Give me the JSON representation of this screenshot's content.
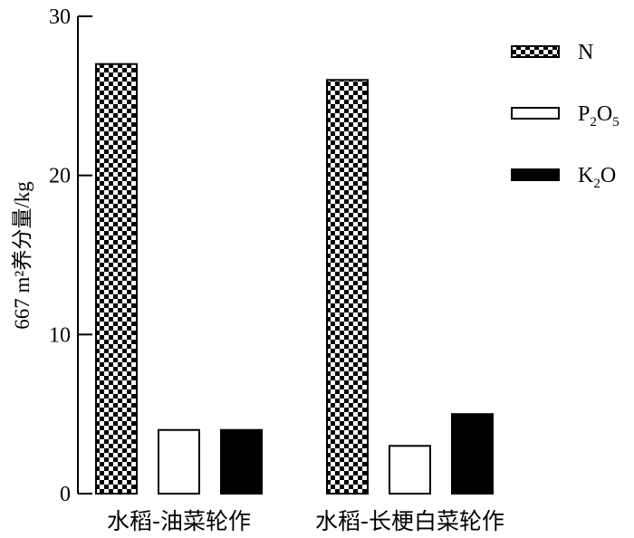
{
  "chart_data": {
    "type": "bar",
    "title": "",
    "xlabel": "",
    "ylabel": "667 m²养分量/kg",
    "ylim": [
      0,
      30
    ],
    "yticks": [
      0,
      10,
      20,
      30
    ],
    "grid": false,
    "legend_position": "top-right",
    "categories": [
      "水稻-油菜轮作",
      "水稻-长梗白菜轮作"
    ],
    "series": [
      {
        "name": "N",
        "values": [
          27,
          26
        ],
        "fill": "checkerboard"
      },
      {
        "name": "P2O5",
        "values": [
          4,
          3
        ],
        "fill": "#ffffff"
      },
      {
        "name": "K2O",
        "values": [
          4,
          5
        ],
        "fill": "#000000"
      }
    ],
    "legend_labels": [
      {
        "main": "N",
        "parts": [
          [
            "N",
            false
          ]
        ]
      },
      {
        "main": "P2O5",
        "parts": [
          [
            "P",
            false
          ],
          [
            "2",
            true
          ],
          [
            "O",
            false
          ],
          [
            "5",
            true
          ]
        ]
      },
      {
        "main": "K2O",
        "parts": [
          [
            "K",
            false
          ],
          [
            "2",
            true
          ],
          [
            "O",
            false
          ]
        ]
      }
    ]
  }
}
